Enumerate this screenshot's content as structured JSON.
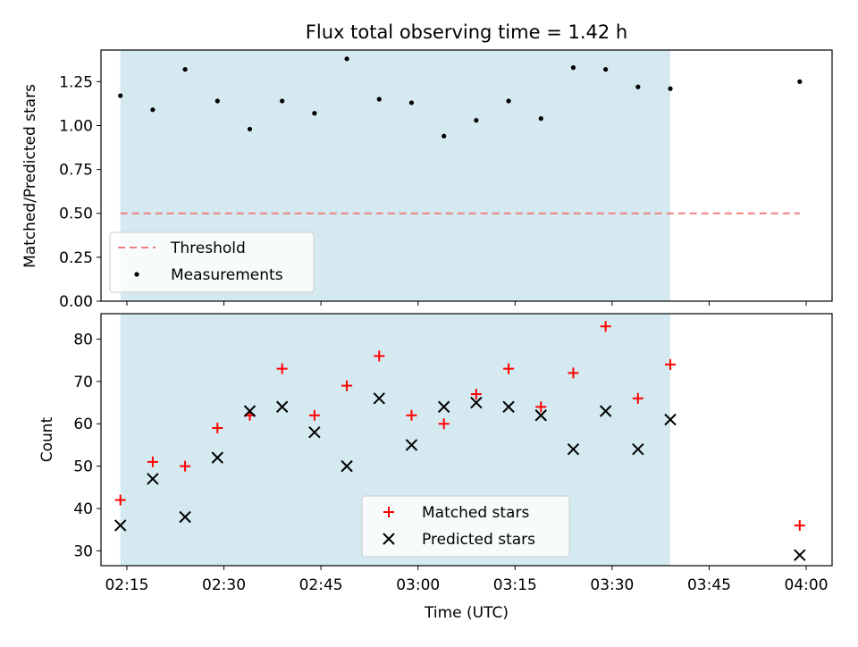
{
  "chart_data": [
    {
      "type": "scatter",
      "title": "Flux total observing time = 1.42 h",
      "ylabel": "Matched/Predicted stars",
      "ylim": [
        0,
        1.43
      ],
      "yticks": [
        "0.00",
        "0.25",
        "0.50",
        "0.75",
        "1.00",
        "1.25"
      ],
      "xlim": [
        "02:11",
        "04:04"
      ],
      "observing_window": [
        "02:14",
        "03:39"
      ],
      "shading_color": "#d4eaf0",
      "threshold": {
        "name": "Threshold",
        "value": 0.5,
        "x_range": [
          "02:14",
          "03:59"
        ],
        "color": "#f07f7f"
      },
      "series": [
        {
          "name": "Measurements",
          "color": "#000000",
          "marker": "dot",
          "x": [
            "02:14",
            "02:19",
            "02:24",
            "02:29",
            "02:34",
            "02:39",
            "02:44",
            "02:49",
            "02:54",
            "02:59",
            "03:04",
            "03:09",
            "03:14",
            "03:19",
            "03:24",
            "03:29",
            "03:34",
            "03:39",
            "03:59"
          ],
          "y": [
            1.17,
            1.09,
            1.32,
            1.14,
            0.98,
            1.14,
            1.07,
            1.38,
            1.15,
            1.13,
            0.94,
            1.03,
            1.14,
            1.04,
            1.33,
            1.32,
            1.22,
            1.21,
            1.25
          ]
        }
      ],
      "legend": {
        "placement": "lower-left",
        "items": [
          "Threshold",
          "Measurements"
        ]
      }
    },
    {
      "type": "scatter",
      "xlabel": "Time (UTC)",
      "ylabel": "Count",
      "ylim": [
        26.5,
        86
      ],
      "yticks": [
        "30",
        "40",
        "50",
        "60",
        "70",
        "80"
      ],
      "xticks": [
        "02:15",
        "02:30",
        "02:45",
        "03:00",
        "03:15",
        "03:30",
        "03:45",
        "04:00"
      ],
      "xlim": [
        "02:11",
        "04:04"
      ],
      "observing_window": [
        "02:14",
        "03:39"
      ],
      "series": [
        {
          "name": "Matched stars",
          "color": "#ff0000",
          "marker": "plus",
          "x": [
            "02:14",
            "02:19",
            "02:24",
            "02:29",
            "02:34",
            "02:39",
            "02:44",
            "02:49",
            "02:54",
            "02:59",
            "03:04",
            "03:09",
            "03:14",
            "03:19",
            "03:24",
            "03:29",
            "03:34",
            "03:39",
            "03:59"
          ],
          "y": [
            42,
            51,
            50,
            59,
            62,
            73,
            62,
            69,
            76,
            62,
            60,
            67,
            73,
            64,
            72,
            83,
            66,
            74,
            36
          ]
        },
        {
          "name": "Predicted stars",
          "color": "#000000",
          "marker": "x",
          "x": [
            "02:14",
            "02:19",
            "02:24",
            "02:29",
            "02:34",
            "02:39",
            "02:44",
            "02:49",
            "02:54",
            "02:59",
            "03:04",
            "03:09",
            "03:14",
            "03:19",
            "03:24",
            "03:29",
            "03:34",
            "03:39",
            "03:59"
          ],
          "y": [
            36,
            47,
            38,
            52,
            63,
            64,
            58,
            50,
            66,
            55,
            64,
            65,
            64,
            62,
            54,
            63,
            54,
            61,
            29
          ]
        }
      ],
      "legend": {
        "placement": "lower-center",
        "items": [
          "Matched stars",
          "Predicted stars"
        ]
      }
    }
  ]
}
